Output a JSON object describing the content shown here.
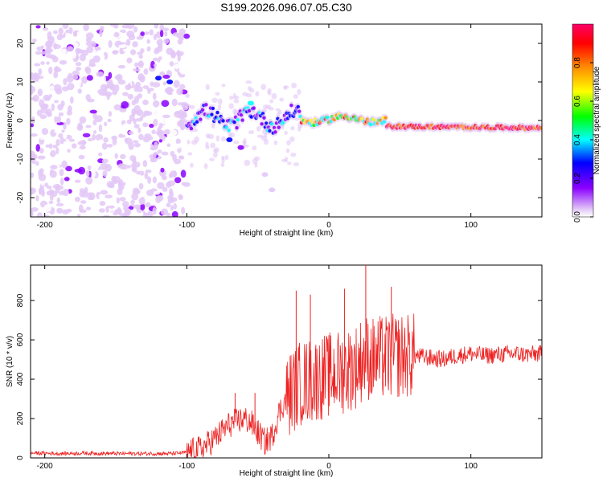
{
  "title": "S199.2026.096.07.05.C30",
  "chart_data": [
    {
      "type": "heatmap",
      "title": "S199.2026.096.07.05.C30",
      "xlabel": "Height of straight line (km)",
      "ylabel": "Frequency (Hz)",
      "xlim": [
        -210,
        150
      ],
      "ylim": [
        -25,
        25
      ],
      "xticks": [
        -200,
        -100,
        0,
        100
      ],
      "yticks": [
        -20,
        -10,
        0,
        10,
        20
      ],
      "grid": false,
      "colorbar": {
        "label": "Normalized spectral amplitude",
        "range": [
          0.0,
          1.0
        ],
        "ticks": [
          0.0,
          0.2,
          0.4,
          0.6,
          0.8
        ],
        "tick_labels": [
          "0.0",
          "0.2",
          "0.4",
          "0.6",
          "0.8"
        ],
        "colormap": [
          "#ffffff",
          "#e3c8f7",
          "#8b00ff",
          "#0000ff",
          "#00ffff",
          "#00ff00",
          "#ffff00",
          "#ff8800",
          "#ff0000",
          "#ff0066"
        ]
      },
      "regions": [
        {
          "x_range": [
            -210,
            -100
          ],
          "pattern": "scattered speckle noise",
          "amplitude": "0.1-0.3"
        },
        {
          "x_range": [
            -100,
            -20
          ],
          "pattern": "disturbed band near 0 Hz with spread",
          "amplitude": "0.2-0.5"
        },
        {
          "x_range": [
            -20,
            40
          ],
          "pattern": "strong band near 0 Hz",
          "amplitude": "0.5-0.9"
        },
        {
          "x_range": [
            40,
            150
          ],
          "pattern": "narrow band centered near -2 Hz",
          "amplitude": "0.7-1.0"
        }
      ]
    },
    {
      "type": "line",
      "xlabel": "Height of straight line (km)",
      "ylabel": "SNR (10 * v/v)",
      "xlim": [
        -210,
        150
      ],
      "ylim": [
        0,
        980
      ],
      "xticks": [
        -200,
        -100,
        0,
        100
      ],
      "yticks": [
        0,
        200,
        400,
        600,
        800
      ],
      "grid": false,
      "series": [
        {
          "name": "SNR",
          "color": "#ee2222",
          "points": [
            [
              -210,
              25
            ],
            [
              -190,
              22
            ],
            [
              -170,
              24
            ],
            [
              -150,
              22
            ],
            [
              -130,
              22
            ],
            [
              -110,
              22
            ],
            [
              -100,
              28
            ],
            [
              -90,
              45
            ],
            [
              -80,
              100
            ],
            [
              -70,
              170
            ],
            [
              -60,
              200
            ],
            [
              -55,
              180
            ],
            [
              -50,
              130
            ],
            [
              -45,
              80
            ],
            [
              -40,
              110
            ],
            [
              -35,
              230
            ],
            [
              -30,
              300
            ],
            [
              -25,
              350
            ],
            [
              -20,
              380
            ],
            [
              -15,
              390
            ],
            [
              -10,
              400
            ],
            [
              0,
              420
            ],
            [
              10,
              440
            ],
            [
              20,
              470
            ],
            [
              25,
              520
            ],
            [
              30,
              500
            ],
            [
              40,
              510
            ],
            [
              50,
              520
            ],
            [
              60,
              520
            ],
            [
              70,
              510
            ],
            [
              80,
              500
            ],
            [
              90,
              520
            ],
            [
              100,
              530
            ],
            [
              110,
              520
            ],
            [
              120,
              525
            ],
            [
              130,
              530
            ],
            [
              140,
              525
            ],
            [
              150,
              530
            ]
          ],
          "spikes": [
            [
              -66,
              330
            ],
            [
              -52,
              330
            ],
            [
              -23,
              850
            ],
            [
              -13,
              830
            ],
            [
              11,
              860
            ],
            [
              26,
              980
            ],
            [
              44,
              870
            ]
          ]
        }
      ]
    }
  ]
}
